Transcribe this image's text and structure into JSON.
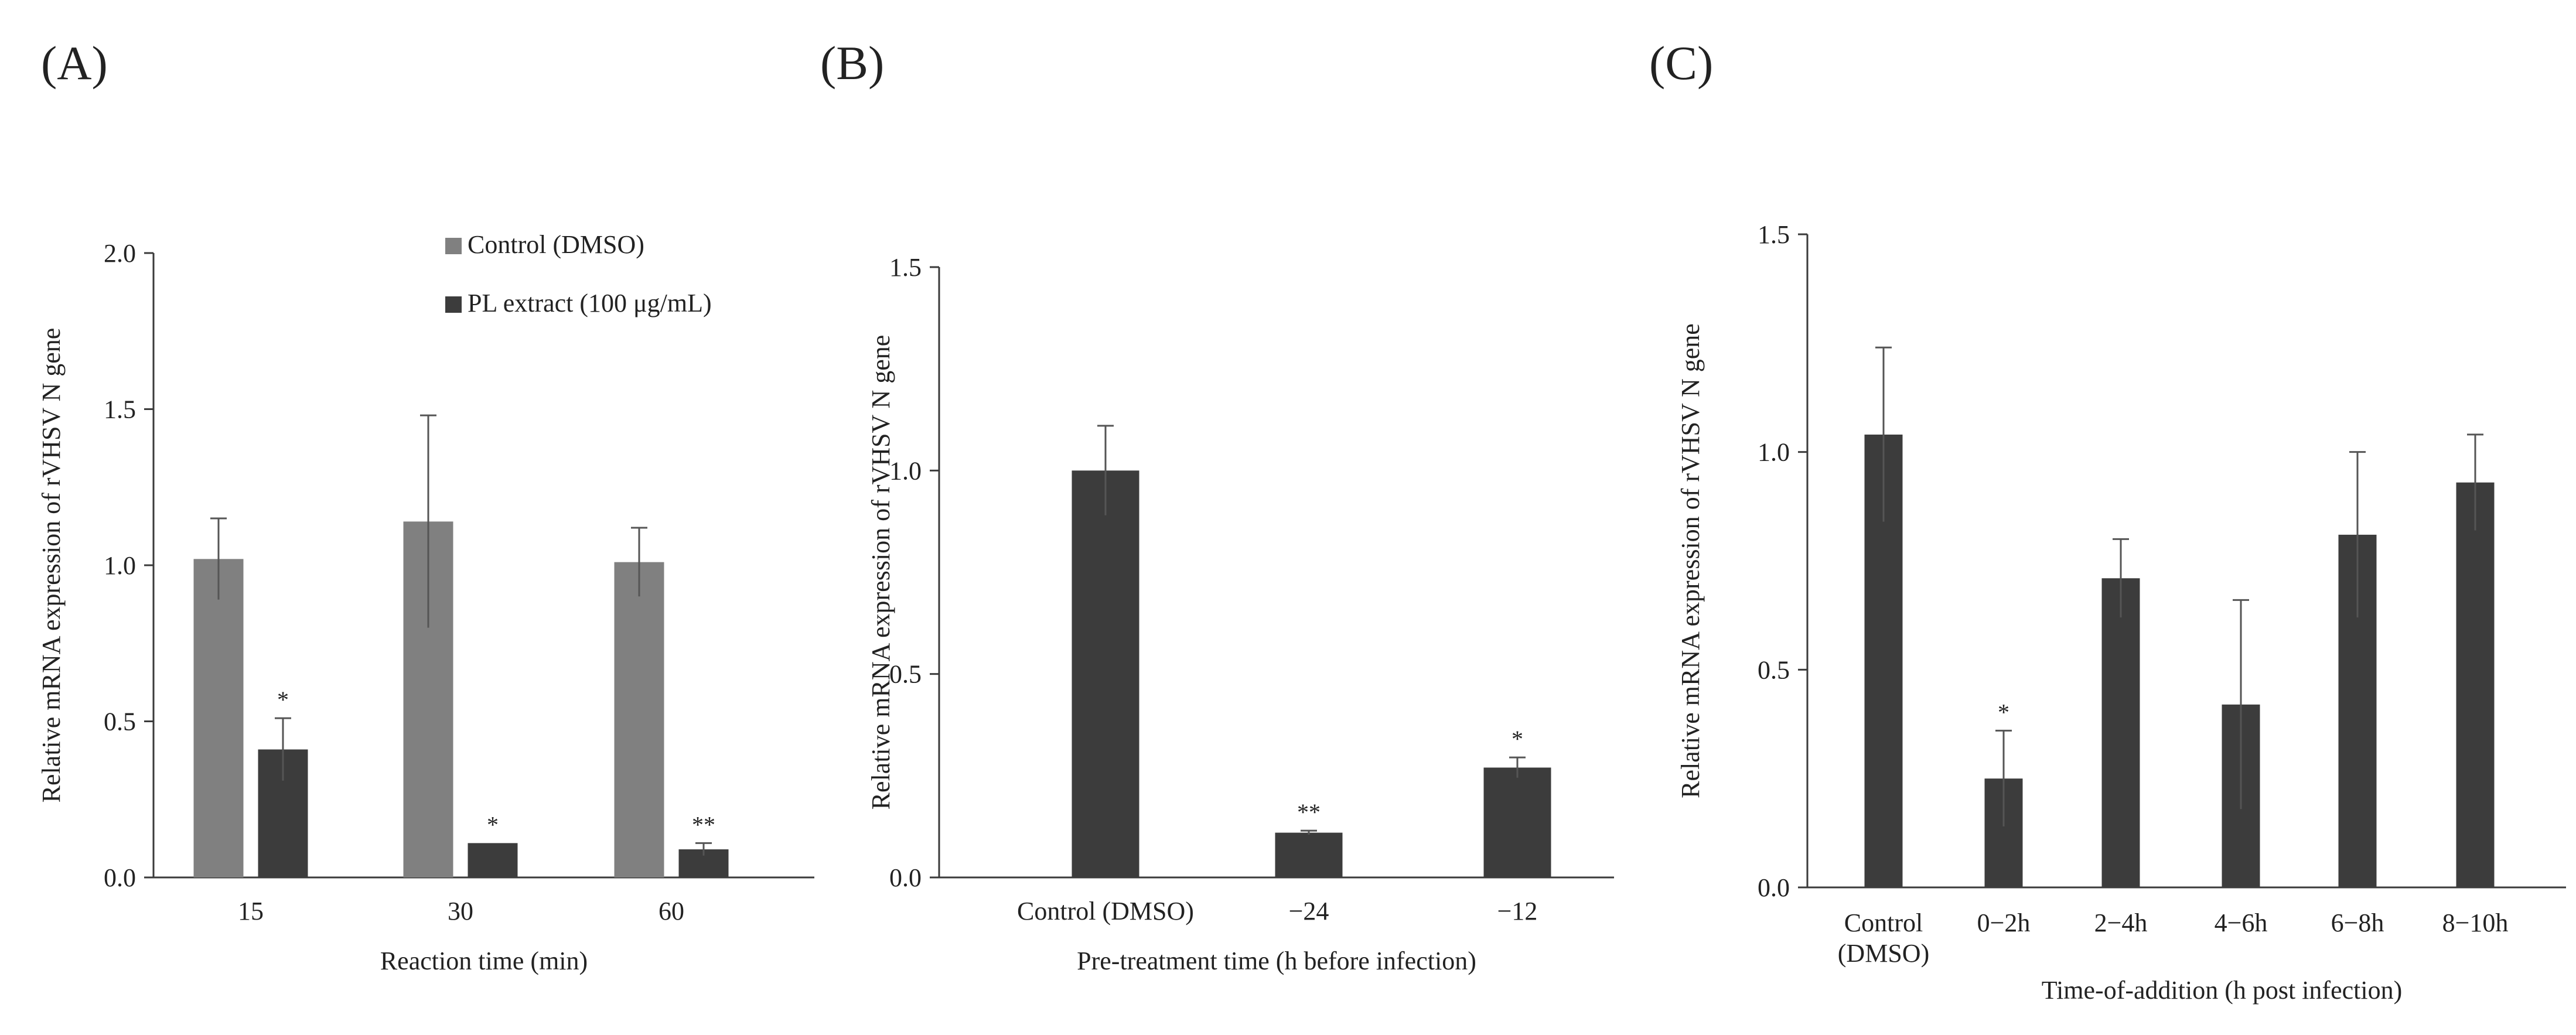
{
  "colors": {
    "control": "#808080",
    "treatment": "#3c3c3c",
    "axis": "#3a3a3a",
    "error": "#555555"
  },
  "chart_data": [
    {
      "panel_label": "(A)",
      "type": "bar",
      "categories": [
        "15",
        "30",
        "60"
      ],
      "series": [
        {
          "name": "Control (DMSO)",
          "values": [
            1.02,
            1.14,
            1.01
          ],
          "errors": [
            0.13,
            0.34,
            0.11
          ],
          "significance": [
            "",
            "",
            ""
          ]
        },
        {
          "name": "PL extract (100 μg/mL)",
          "values": [
            0.41,
            0.11,
            0.09
          ],
          "errors": [
            0.1,
            0.0,
            0.02
          ],
          "significance": [
            "*",
            "*",
            "**"
          ]
        }
      ],
      "title": "",
      "xlabel": "Reaction time (min)",
      "ylabel": "Relative mRNA expression of rVHSV N gene",
      "ylim": [
        0,
        2.0
      ],
      "yticks": [
        "0.0",
        "0.5",
        "1.0",
        "1.5",
        "2.0"
      ],
      "legend": "top-right",
      "grid": false
    },
    {
      "panel_label": "(B)",
      "type": "bar",
      "categories": [
        "Control (DMSO)",
        "−24",
        "−12"
      ],
      "series": [
        {
          "values": [
            1.0,
            0.11,
            0.27
          ],
          "errors": [
            0.11,
            0.005,
            0.025
          ],
          "significance": [
            "",
            "**",
            "*"
          ]
        }
      ],
      "title": "",
      "xlabel": "Pre-treatment time (h before infection)",
      "ylabel": "Relative mRNA expression of  rVHSV N gene",
      "ylim": [
        0,
        1.5
      ],
      "yticks": [
        "0.0",
        "0.5",
        "1.0",
        "1.5"
      ],
      "grid": false
    },
    {
      "panel_label": "(C)",
      "type": "bar",
      "categories": [
        [
          "Control",
          "(DMSO)"
        ],
        [
          "0−2h"
        ],
        [
          "2−4h"
        ],
        [
          "4−6h"
        ],
        [
          "6−8h"
        ],
        [
          "8−10h"
        ]
      ],
      "series": [
        {
          "values": [
            1.04,
            0.25,
            0.71,
            0.42,
            0.81,
            0.93
          ],
          "errors": [
            0.2,
            0.11,
            0.09,
            0.24,
            0.19,
            0.11
          ],
          "significance": [
            "",
            "*",
            "",
            "",
            "",
            ""
          ]
        }
      ],
      "title": "",
      "xlabel": "Time-of-addition (h post infection)",
      "ylabel": "Relative mRNA expression of rVHSV N gene",
      "ylim": [
        0,
        1.5
      ],
      "yticks": [
        "0.0",
        "0.5",
        "1.0",
        "1.5"
      ],
      "grid": false
    }
  ]
}
